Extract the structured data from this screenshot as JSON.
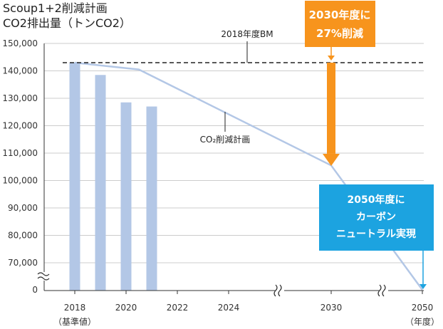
{
  "chart_data": {
    "type": "bar",
    "title_lines": [
      "Scoup1+2削減計画",
      "CO2排出量（トンCO2）"
    ],
    "ylim": [
      60000,
      150000
    ],
    "y_ticks": [
      {
        "value": 150000,
        "label": "150,000"
      },
      {
        "value": 140000,
        "label": "140,000"
      },
      {
        "value": 130000,
        "label": "130,000"
      },
      {
        "value": 120000,
        "label": "120,000"
      },
      {
        "value": 110000,
        "label": "110,000"
      },
      {
        "value": 100000,
        "label": "100,000"
      },
      {
        "value": 90000,
        "label": "90,000"
      },
      {
        "value": 80000,
        "label": "80,000"
      },
      {
        "value": 70000,
        "label": "70,000"
      }
    ],
    "y_zero_label": "0",
    "x_ticks": [
      {
        "year": 2018,
        "label": "2018",
        "sub": "（基準値）"
      },
      {
        "year": 2020,
        "label": "2020",
        "sub": ""
      },
      {
        "year": 2022,
        "label": "2022",
        "sub": ""
      },
      {
        "year": 2024,
        "label": "2024",
        "sub": ""
      },
      {
        "year": 2030,
        "label": "2030",
        "sub": ""
      },
      {
        "year": 2050,
        "label": "2050",
        "sub": "（年度）"
      }
    ],
    "bars": [
      {
        "year": 2018,
        "value": 143000
      },
      {
        "year": 2019,
        "value": 138500
      },
      {
        "year": 2020,
        "value": 128500
      },
      {
        "year": 2021,
        "value": 127000
      }
    ],
    "plan_line": {
      "label": "CO₂削減計画",
      "points": [
        {
          "year": 2018,
          "value": 143000
        },
        {
          "year": 2020.5,
          "value": 140500
        },
        {
          "year": 2030,
          "value": 105500
        },
        {
          "year": 2050,
          "value": 0
        }
      ]
    },
    "baseline": {
      "label": "2018年度BM",
      "value": 143000
    },
    "callout_2030": {
      "lines": [
        "2030年度に",
        "27%削減"
      ],
      "color": "#f7941d"
    },
    "callout_2050": {
      "lines": [
        "2050年度に",
        "カーボン",
        "ニュートラル実現"
      ],
      "color": "#1ca3e0"
    },
    "colors": {
      "bar": "#b3c7e6",
      "line": "#b3c7e6",
      "grid": "#cccccc",
      "axis": "#333333",
      "baseline": "#222222"
    },
    "grid": true,
    "axis_breaks": true
  }
}
